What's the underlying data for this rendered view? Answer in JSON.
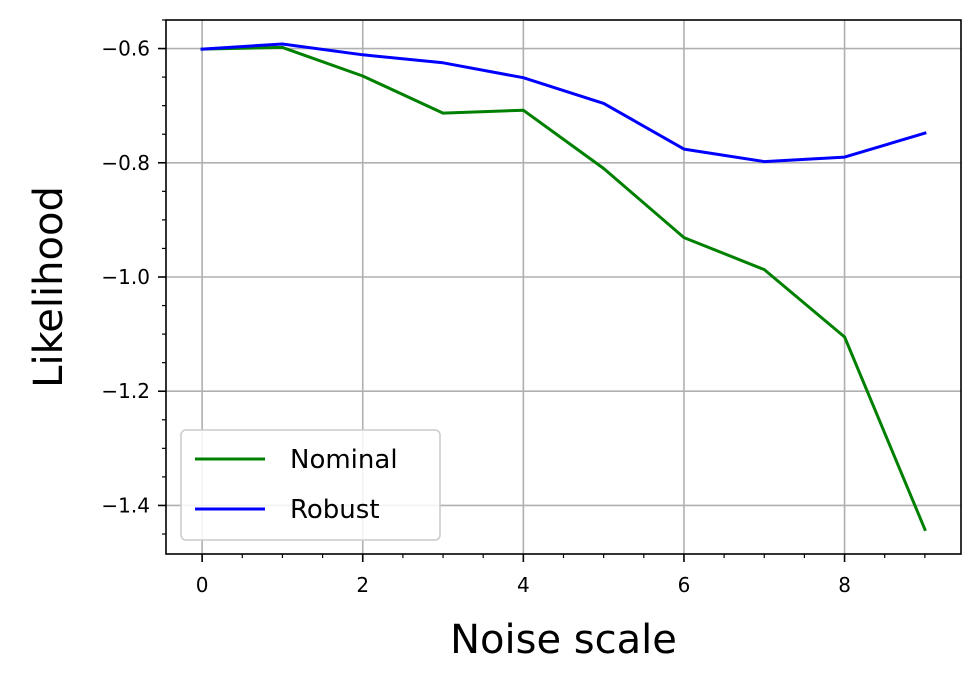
{
  "chart_data": {
    "type": "line",
    "title": "",
    "xlabel": "Noise scale",
    "ylabel": "Likelihood",
    "x": [
      0,
      1,
      2,
      3,
      4,
      5,
      6,
      7,
      8,
      9
    ],
    "xlim": [
      -0.45,
      9.45
    ],
    "ylim": [
      -1.485,
      -0.55
    ],
    "x_ticks": [
      0,
      2,
      4,
      6,
      8
    ],
    "x_tick_labels": [
      "0",
      "2",
      "4",
      "6",
      "8"
    ],
    "y_ticks": [
      -0.6,
      -0.8,
      -1.0,
      -1.2,
      -1.4
    ],
    "y_tick_labels": [
      "−0.6",
      "−0.8",
      "−1.0",
      "−1.2",
      "−1.4"
    ],
    "x_minor_step": 0.5,
    "y_minor_step": 0.05,
    "grid": true,
    "legend_position": "lower-left",
    "series": [
      {
        "name": "Nominal",
        "color": "#008000",
        "values": [
          -0.601,
          -0.598,
          -0.648,
          -0.713,
          -0.708,
          -0.81,
          -0.931,
          -0.987,
          -1.105,
          -1.442
        ]
      },
      {
        "name": "Robust",
        "color": "#0000ff",
        "values": [
          -0.601,
          -0.592,
          -0.611,
          -0.625,
          -0.651,
          -0.696,
          -0.776,
          -0.798,
          -0.79,
          -0.748
        ]
      }
    ]
  }
}
